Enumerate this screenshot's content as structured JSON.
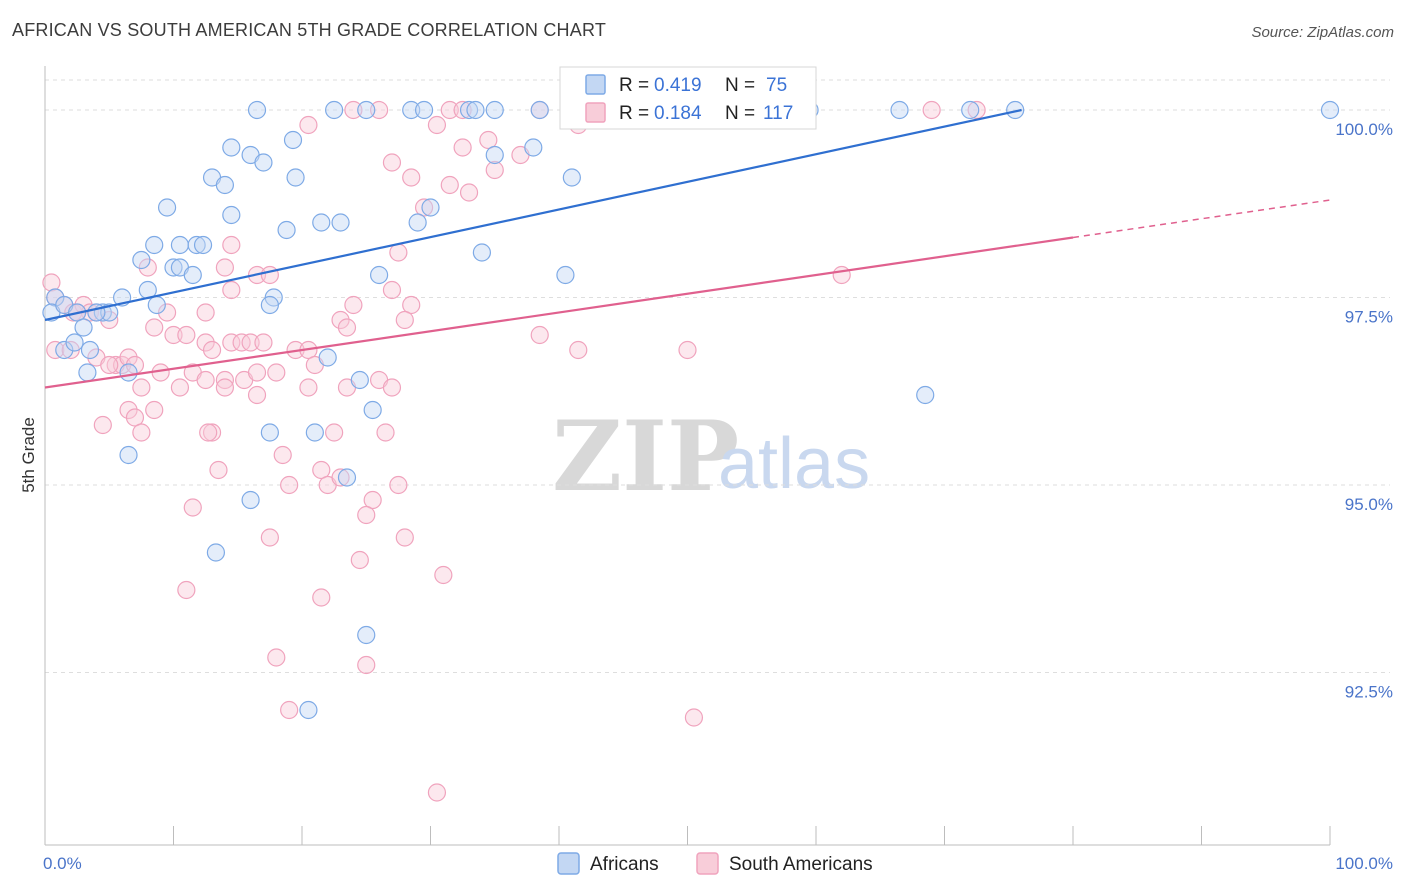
{
  "title": "AFRICAN VS SOUTH AMERICAN 5TH GRADE CORRELATION CHART",
  "source": "Source: ZipAtlas.com",
  "watermark": {
    "zip": "ZIP",
    "atlas": "atlas"
  },
  "colors": {
    "blue": "#7eaae6",
    "blue_line": "#2f6fd0",
    "pink": "#f0a3bd",
    "pink_line": "#e0608e",
    "axis_text": "#4a74c9",
    "grid": "#dedede"
  },
  "legend": {
    "rows": [
      {
        "r_label": "R = ",
        "r_value": "0.419",
        "n_label": "N = ",
        "n_value": "75"
      },
      {
        "r_label": "R = ",
        "r_value": "0.184",
        "n_label": "N = ",
        "n_value": "117"
      }
    ]
  },
  "bottom_legend": [
    "Africans",
    "South Americans"
  ],
  "chart_data": {
    "type": "scatter",
    "title": "AFRICAN VS SOUTH AMERICAN 5TH GRADE CORRELATION CHART",
    "xlabel": "",
    "ylabel": "5th Grade",
    "xlim": [
      0,
      100
    ],
    "ylim": [
      90.2,
      100.4
    ],
    "x_tick_labels": [
      "0.0%",
      "100.0%"
    ],
    "y_ticks": [
      92.5,
      95.0,
      97.5,
      100.0
    ],
    "y_tick_labels": [
      "92.5%",
      "95.0%",
      "97.5%",
      "100.0%"
    ],
    "grid": "horizontal dashed",
    "legend_position": "top-center",
    "series": [
      {
        "name": "Africans",
        "color": "#7eaae6",
        "R": 0.419,
        "N": 75,
        "trend": {
          "x0": 0,
          "y0": 97.2,
          "x1": 76,
          "y1": 100.0
        },
        "points": [
          [
            16.5,
            100.0
          ],
          [
            22.5,
            100.0
          ],
          [
            25.0,
            100.0
          ],
          [
            28.5,
            100.0
          ],
          [
            29.5,
            100.0
          ],
          [
            33.0,
            100.0
          ],
          [
            33.5,
            100.0
          ],
          [
            35.0,
            100.0
          ],
          [
            38.5,
            100.0
          ],
          [
            44.5,
            100.0
          ],
          [
            54.5,
            100.0
          ],
          [
            59.5,
            100.0
          ],
          [
            66.5,
            100.0
          ],
          [
            72.0,
            100.0
          ],
          [
            75.5,
            100.0
          ],
          [
            100.0,
            100.0
          ],
          [
            14.5,
            99.5
          ],
          [
            16.0,
            99.4
          ],
          [
            17.0,
            99.3
          ],
          [
            19.3,
            99.6
          ],
          [
            35.0,
            99.4
          ],
          [
            38.0,
            99.5
          ],
          [
            41.0,
            99.1
          ],
          [
            13.0,
            99.1
          ],
          [
            14.0,
            99.0
          ],
          [
            19.5,
            99.1
          ],
          [
            9.5,
            98.7
          ],
          [
            14.5,
            98.6
          ],
          [
            21.5,
            98.5
          ],
          [
            23.0,
            98.5
          ],
          [
            18.8,
            98.4
          ],
          [
            29.0,
            98.5
          ],
          [
            30.0,
            98.7
          ],
          [
            8.5,
            98.2
          ],
          [
            10.5,
            98.2
          ],
          [
            11.8,
            98.2
          ],
          [
            12.3,
            98.2
          ],
          [
            7.5,
            98.0
          ],
          [
            34.0,
            98.1
          ],
          [
            10.0,
            97.9
          ],
          [
            10.5,
            97.9
          ],
          [
            11.5,
            97.8
          ],
          [
            26.0,
            97.8
          ],
          [
            40.5,
            97.8
          ],
          [
            8.0,
            97.6
          ],
          [
            6.0,
            97.5
          ],
          [
            17.8,
            97.5
          ],
          [
            8.7,
            97.4
          ],
          [
            17.5,
            97.4
          ],
          [
            0.8,
            97.5
          ],
          [
            0.5,
            97.3
          ],
          [
            1.5,
            97.4
          ],
          [
            2.5,
            97.3
          ],
          [
            4.5,
            97.3
          ],
          [
            5.0,
            97.3
          ],
          [
            3.0,
            97.1
          ],
          [
            4.0,
            97.3
          ],
          [
            1.5,
            96.8
          ],
          [
            2.3,
            96.9
          ],
          [
            3.5,
            96.8
          ],
          [
            3.3,
            96.5
          ],
          [
            6.5,
            96.5
          ],
          [
            22.0,
            96.7
          ],
          [
            24.5,
            96.4
          ],
          [
            25.5,
            96.0
          ],
          [
            68.5,
            96.2
          ],
          [
            17.5,
            95.7
          ],
          [
            21.0,
            95.7
          ],
          [
            6.5,
            95.4
          ],
          [
            23.5,
            95.1
          ],
          [
            16.0,
            94.8
          ],
          [
            13.3,
            94.1
          ],
          [
            25.0,
            93.0
          ],
          [
            20.5,
            92.0
          ]
        ]
      },
      {
        "name": "South Americans",
        "color": "#f0a3bd",
        "R": 0.184,
        "N": 117,
        "trend": {
          "x0": 0,
          "y0": 96.3,
          "x1": 80,
          "y1": 98.3
        },
        "trend_dashed": {
          "x0": 80,
          "y0": 98.3,
          "x1": 100,
          "y1": 98.8
        },
        "points": [
          [
            24.0,
            100.0
          ],
          [
            26.0,
            100.0
          ],
          [
            31.5,
            100.0
          ],
          [
            32.5,
            100.0
          ],
          [
            38.5,
            100.0
          ],
          [
            42.0,
            100.0
          ],
          [
            46.5,
            100.0
          ],
          [
            69.0,
            100.0
          ],
          [
            72.5,
            100.0
          ],
          [
            20.5,
            99.8
          ],
          [
            30.5,
            99.8
          ],
          [
            41.5,
            99.8
          ],
          [
            32.5,
            99.5
          ],
          [
            34.5,
            99.6
          ],
          [
            27.0,
            99.3
          ],
          [
            37.0,
            99.4
          ],
          [
            28.5,
            99.1
          ],
          [
            35.0,
            99.2
          ],
          [
            31.5,
            99.0
          ],
          [
            33.0,
            98.9
          ],
          [
            29.5,
            98.7
          ],
          [
            14.5,
            98.2
          ],
          [
            27.5,
            98.1
          ],
          [
            8.0,
            97.9
          ],
          [
            14.0,
            97.9
          ],
          [
            16.5,
            97.8
          ],
          [
            17.5,
            97.8
          ],
          [
            14.5,
            97.6
          ],
          [
            27.0,
            97.6
          ],
          [
            62.0,
            97.8
          ],
          [
            0.5,
            97.7
          ],
          [
            0.8,
            97.5
          ],
          [
            1.5,
            97.4
          ],
          [
            2.2,
            97.3
          ],
          [
            3.0,
            97.4
          ],
          [
            3.5,
            97.3
          ],
          [
            4.0,
            97.3
          ],
          [
            5.0,
            97.2
          ],
          [
            2.5,
            97.3
          ],
          [
            9.5,
            97.3
          ],
          [
            12.5,
            97.3
          ],
          [
            24.0,
            97.4
          ],
          [
            23.0,
            97.2
          ],
          [
            23.5,
            97.1
          ],
          [
            28.5,
            97.4
          ],
          [
            28.0,
            97.2
          ],
          [
            8.5,
            97.1
          ],
          [
            10.0,
            97.0
          ],
          [
            11.0,
            97.0
          ],
          [
            12.5,
            96.9
          ],
          [
            13.0,
            96.8
          ],
          [
            14.5,
            96.9
          ],
          [
            15.3,
            96.9
          ],
          [
            16.0,
            96.9
          ],
          [
            17.0,
            96.9
          ],
          [
            38.5,
            97.0
          ],
          [
            0.8,
            96.8
          ],
          [
            2.0,
            96.8
          ],
          [
            4.0,
            96.7
          ],
          [
            5.5,
            96.6
          ],
          [
            6.0,
            96.6
          ],
          [
            6.5,
            96.7
          ],
          [
            5.0,
            96.6
          ],
          [
            7.0,
            96.6
          ],
          [
            19.5,
            96.8
          ],
          [
            20.5,
            96.8
          ],
          [
            41.5,
            96.8
          ],
          [
            50.0,
            96.8
          ],
          [
            9.0,
            96.5
          ],
          [
            11.5,
            96.5
          ],
          [
            12.5,
            96.4
          ],
          [
            15.5,
            96.4
          ],
          [
            16.5,
            96.5
          ],
          [
            18.0,
            96.5
          ],
          [
            21.0,
            96.6
          ],
          [
            26.0,
            96.4
          ],
          [
            27.0,
            96.3
          ],
          [
            14.0,
            96.4
          ],
          [
            7.5,
            96.3
          ],
          [
            10.5,
            96.3
          ],
          [
            14.0,
            96.3
          ],
          [
            16.5,
            96.2
          ],
          [
            20.5,
            96.3
          ],
          [
            23.5,
            96.3
          ],
          [
            6.5,
            96.0
          ],
          [
            7.0,
            95.9
          ],
          [
            8.5,
            96.0
          ],
          [
            13.0,
            95.7
          ],
          [
            12.7,
            95.7
          ],
          [
            18.5,
            95.4
          ],
          [
            22.5,
            95.7
          ],
          [
            26.5,
            95.7
          ],
          [
            4.5,
            95.8
          ],
          [
            7.5,
            95.7
          ],
          [
            13.5,
            95.2
          ],
          [
            19.0,
            95.0
          ],
          [
            21.5,
            95.2
          ],
          [
            22.0,
            95.0
          ],
          [
            23.0,
            95.1
          ],
          [
            25.5,
            94.8
          ],
          [
            27.5,
            95.0
          ],
          [
            11.5,
            94.7
          ],
          [
            25.0,
            94.6
          ],
          [
            17.5,
            94.3
          ],
          [
            28.0,
            94.3
          ],
          [
            24.5,
            94.0
          ],
          [
            31.0,
            93.8
          ],
          [
            11.0,
            93.6
          ],
          [
            21.5,
            93.5
          ],
          [
            18.0,
            92.7
          ],
          [
            25.0,
            92.6
          ],
          [
            19.0,
            92.0
          ],
          [
            50.5,
            91.9
          ],
          [
            30.5,
            90.9
          ]
        ]
      }
    ]
  }
}
